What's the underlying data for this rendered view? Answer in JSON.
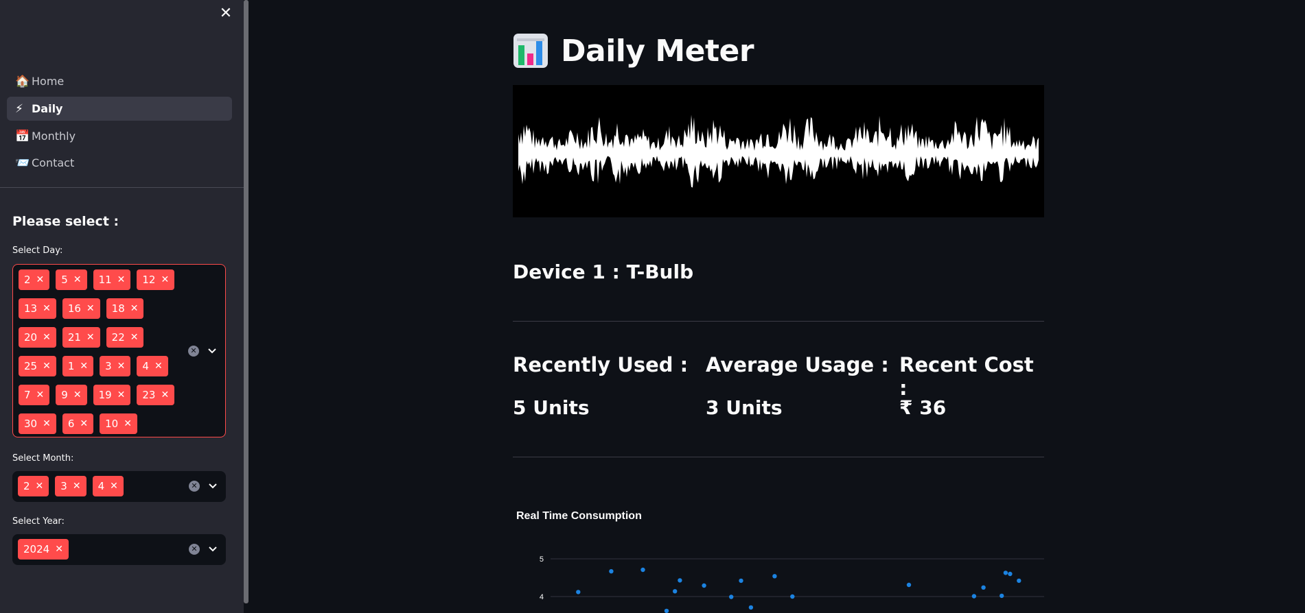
{
  "sidebar": {
    "close_icon": "close-icon",
    "nav": [
      {
        "label": "Home",
        "icon": "house-icon",
        "glyph": "🏠"
      },
      {
        "label": "Daily",
        "icon": "lightning-icon",
        "glyph": "⚡"
      },
      {
        "label": "Monthly",
        "icon": "calendar-icon",
        "glyph": "📅"
      },
      {
        "label": "Contact",
        "icon": "envelope-icon",
        "glyph": "📨"
      }
    ],
    "active_index": 1,
    "section_title": "Please select :",
    "day": {
      "label": "Select Day:",
      "values": [
        "2",
        "5",
        "11",
        "12",
        "13",
        "16",
        "18",
        "20",
        "21",
        "22",
        "25",
        "1",
        "3",
        "4",
        "7",
        "9",
        "19",
        "23",
        "30",
        "6",
        "10"
      ]
    },
    "month": {
      "label": "Select Month:",
      "values": [
        "2",
        "3",
        "4"
      ]
    },
    "year": {
      "label": "Select Year:",
      "values": [
        "2024"
      ]
    }
  },
  "main": {
    "title": "Daily Meter",
    "title_icon": "bar-chart-icon",
    "device": "Device 1 : T-Bulb",
    "metrics": [
      {
        "label": "Recently Used :",
        "value": "5 Units"
      },
      {
        "label": "Average Usage :",
        "value": "3 Units"
      },
      {
        "label": "Recent Cost :",
        "value": "₹ 36"
      }
    ]
  },
  "chart_data": {
    "type": "scatter",
    "title": "Real Time Consumption",
    "yticks": [
      "5",
      "4"
    ],
    "ylim": [
      3.6,
      5.2
    ],
    "xlim": [
      0,
      100
    ],
    "points": [
      {
        "x": 5.6,
        "y": 4.12
      },
      {
        "x": 12.3,
        "y": 4.67
      },
      {
        "x": 18.7,
        "y": 4.71
      },
      {
        "x": 23.5,
        "y": 3.62
      },
      {
        "x": 25.2,
        "y": 4.14
      },
      {
        "x": 26.2,
        "y": 4.43
      },
      {
        "x": 31.1,
        "y": 4.29
      },
      {
        "x": 36.6,
        "y": 3.99
      },
      {
        "x": 38.6,
        "y": 4.42
      },
      {
        "x": 40.6,
        "y": 3.71
      },
      {
        "x": 45.4,
        "y": 4.54
      },
      {
        "x": 49.0,
        "y": 4.0
      },
      {
        "x": 72.6,
        "y": 4.31
      },
      {
        "x": 85.8,
        "y": 4.01
      },
      {
        "x": 87.7,
        "y": 4.24
      },
      {
        "x": 91.4,
        "y": 4.02
      },
      {
        "x": 92.2,
        "y": 4.63
      },
      {
        "x": 93.1,
        "y": 4.6
      },
      {
        "x": 94.9,
        "y": 4.42
      }
    ]
  }
}
